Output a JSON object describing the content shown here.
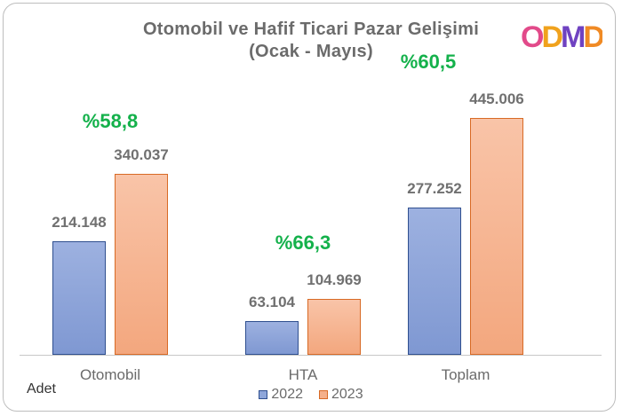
{
  "title_line1": "Otomobil ve Hafif Ticari Pazar Gelişimi",
  "title_line2": "(Ocak - Mayıs)",
  "logo_text": "ODMD",
  "unit_label": "Adet",
  "colors": {
    "series_2022": "#8ea6da",
    "series_2023": "#f5b08a",
    "growth_text": "#14b14b",
    "logo": [
      "#e24a8a",
      "#f0a21d",
      "#6f42c1",
      "#f08a24"
    ]
  },
  "chart_data": {
    "type": "bar",
    "title": "Otomobil ve Hafif Ticari Pazar Gelişimi (Ocak - Mayıs)",
    "categories": [
      "Otomobil",
      "HTA",
      "Toplam"
    ],
    "series": [
      {
        "name": "2022",
        "values": [
          214148,
          63104,
          277252
        ],
        "labels": [
          "214.148",
          "63.104",
          "277.252"
        ]
      },
      {
        "name": "2023",
        "values": [
          340037,
          104969,
          445006
        ],
        "labels": [
          "340.037",
          "104.969",
          "445.006"
        ]
      }
    ],
    "growth_labels": [
      "%58,8",
      "%66,3",
      "%60,5"
    ],
    "ylabel": "Adet",
    "ylim": [
      0,
      500000
    ],
    "legend": "bottom",
    "grid": false
  }
}
